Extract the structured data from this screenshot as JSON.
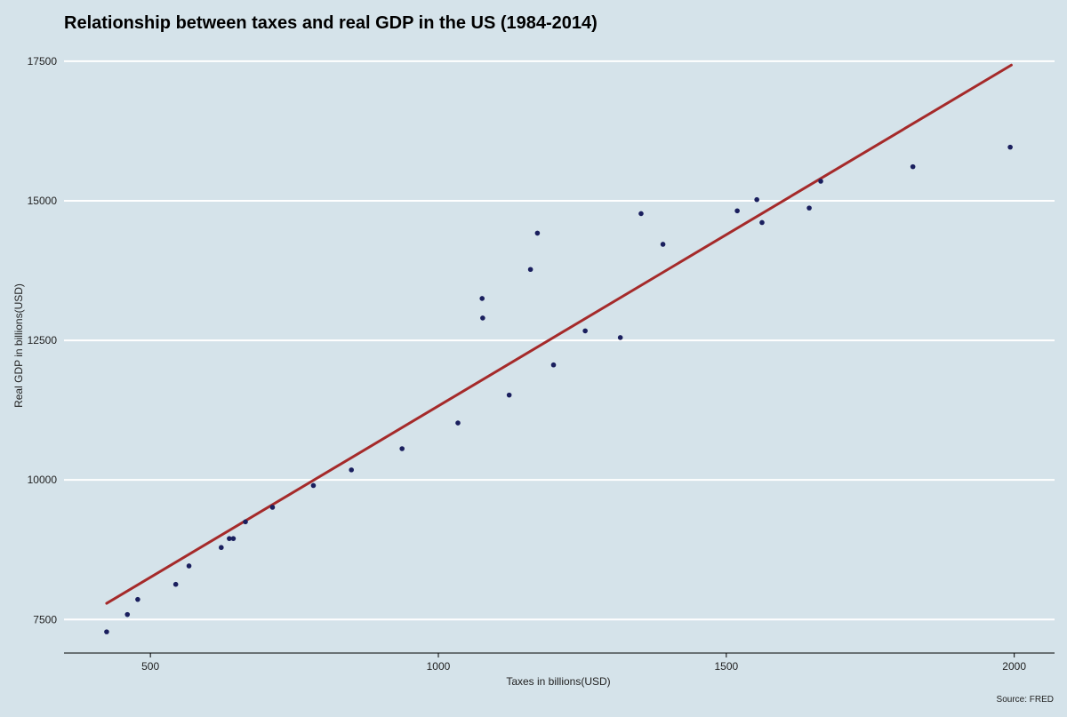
{
  "chart_data": {
    "type": "scatter",
    "title": "Relationship between taxes and real GDP in the US (1984-2014)",
    "xlabel": "Taxes in billions(USD)",
    "ylabel": "Real GDP in billions(USD)",
    "caption": "Source: FRED",
    "xlim": [
      350,
      2070
    ],
    "ylim": [
      6900,
      17800
    ],
    "xticks": [
      500,
      1000,
      1500,
      2000
    ],
    "yticks": [
      7500,
      10000,
      12500,
      15000,
      17500
    ],
    "grid": "horizontal-major",
    "colors": {
      "background": "#d5e3ea",
      "gridline": "#ffffff",
      "point": "#1a1f5e",
      "trend": "#a52a2a",
      "axis": "#000000"
    },
    "points": [
      {
        "x": 424,
        "y": 7280
      },
      {
        "x": 460,
        "y": 7590
      },
      {
        "x": 478,
        "y": 7860
      },
      {
        "x": 544,
        "y": 8130
      },
      {
        "x": 567,
        "y": 8460
      },
      {
        "x": 623,
        "y": 8790
      },
      {
        "x": 637,
        "y": 8950
      },
      {
        "x": 644,
        "y": 8950
      },
      {
        "x": 665,
        "y": 9250
      },
      {
        "x": 712,
        "y": 9510
      },
      {
        "x": 783,
        "y": 9900
      },
      {
        "x": 849,
        "y": 10180
      },
      {
        "x": 937,
        "y": 10560
      },
      {
        "x": 1034,
        "y": 11020
      },
      {
        "x": 1076,
        "y": 13250
      },
      {
        "x": 1077,
        "y": 12900
      },
      {
        "x": 1123,
        "y": 11520
      },
      {
        "x": 1160,
        "y": 13770
      },
      {
        "x": 1172,
        "y": 14420
      },
      {
        "x": 1200,
        "y": 12060
      },
      {
        "x": 1255,
        "y": 12670
      },
      {
        "x": 1316,
        "y": 12550
      },
      {
        "x": 1352,
        "y": 14770
      },
      {
        "x": 1390,
        "y": 14220
      },
      {
        "x": 1519,
        "y": 14820
      },
      {
        "x": 1553,
        "y": 15020
      },
      {
        "x": 1562,
        "y": 14610
      },
      {
        "x": 1644,
        "y": 14870
      },
      {
        "x": 1664,
        "y": 15350
      },
      {
        "x": 1824,
        "y": 15610
      },
      {
        "x": 1993,
        "y": 15960
      }
    ],
    "trend_line": {
      "x": [
        424,
        1995
      ],
      "y": [
        7790,
        17430
      ]
    }
  }
}
